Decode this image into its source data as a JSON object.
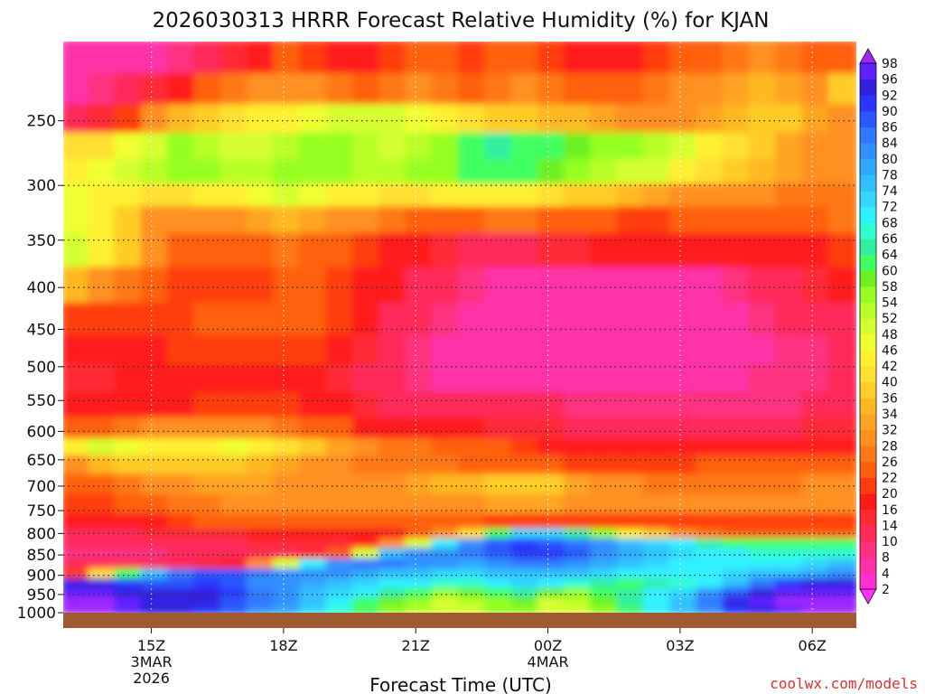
{
  "chart_data": {
    "type": "heatmap",
    "title": "2026030313 HRRR Forecast Relative Humidity (%) for KJAN",
    "xlabel": "Forecast Time (UTC)",
    "ylabel": "",
    "credit": "coolwx.com/models",
    "x_ticks": [
      {
        "hour": 15,
        "lines": [
          "15Z",
          "3MAR",
          "2026"
        ]
      },
      {
        "hour": 18,
        "lines": [
          "18Z"
        ]
      },
      {
        "hour": 21,
        "lines": [
          "21Z"
        ]
      },
      {
        "hour": 24,
        "lines": [
          "00Z",
          "4MAR"
        ]
      },
      {
        "hour": 27,
        "lines": [
          "03Z"
        ]
      },
      {
        "hour": 30,
        "lines": [
          "06Z"
        ]
      }
    ],
    "xlim": [
      13,
      31
    ],
    "y_ticks": [
      250,
      300,
      350,
      400,
      450,
      500,
      550,
      600,
      650,
      700,
      750,
      800,
      850,
      900,
      950,
      1000
    ],
    "ylim": [
      200,
      1000
    ],
    "y_scale": "log",
    "grid": true,
    "colorbar": {
      "levels": [
        2,
        4,
        8,
        10,
        14,
        16,
        20,
        22,
        26,
        28,
        32,
        34,
        36,
        40,
        42,
        46,
        48,
        52,
        54,
        58,
        60,
        64,
        66,
        68,
        72,
        74,
        78,
        80,
        84,
        86,
        90,
        92,
        96,
        98
      ],
      "colors": [
        "#ff30ff",
        "#ff30d2",
        "#ff30a8",
        "#ff3080",
        "#ff2a5a",
        "#ff2a36",
        "#ff1a1a",
        "#ff3c10",
        "#ff6010",
        "#ff7818",
        "#ff9020",
        "#ffa420",
        "#ffb820",
        "#ffcc28",
        "#ffe030",
        "#fff030",
        "#f0ff30",
        "#d6ff30",
        "#b8ff28",
        "#96ff20",
        "#6cf020",
        "#40ff60",
        "#30f0a0",
        "#30ffd0",
        "#30f0ff",
        "#30d8ff",
        "#30c0ff",
        "#30a8ff",
        "#3090ff",
        "#3078ff",
        "#2a58ff",
        "#2a38ff",
        "#3020e0",
        "#6020ff",
        "#a028ff"
      ]
    },
    "rows": [
      {
        "p": 210,
        "v": [
          4,
          4,
          4,
          6,
          8,
          12,
          14,
          18,
          22,
          20,
          18,
          16,
          20,
          24,
          22,
          20,
          22,
          24,
          20,
          18,
          16,
          18,
          20,
          22,
          24,
          26,
          28,
          26,
          24,
          22
        ]
      },
      {
        "p": 230,
        "v": [
          6,
          8,
          10,
          14,
          18,
          22,
          26,
          28,
          30,
          28,
          26,
          24,
          26,
          28,
          26,
          24,
          26,
          28,
          26,
          24,
          22,
          24,
          26,
          28,
          30,
          32,
          34,
          32,
          30,
          38
        ]
      },
      {
        "p": 250,
        "v": [
          10,
          14,
          20,
          28,
          34,
          38,
          40,
          42,
          44,
          46,
          48,
          48,
          50,
          46,
          44,
          40,
          38,
          36,
          34,
          34,
          32,
          30,
          30,
          30,
          32,
          34,
          36,
          38,
          32,
          30
        ]
      },
      {
        "p": 270,
        "v": [
          40,
          40,
          46,
          50,
          54,
          52,
          50,
          50,
          52,
          54,
          56,
          52,
          50,
          52,
          56,
          62,
          64,
          62,
          62,
          58,
          56,
          54,
          52,
          48,
          44,
          40,
          36,
          32,
          30,
          28
        ]
      },
      {
        "p": 290,
        "v": [
          44,
          46,
          50,
          52,
          54,
          54,
          52,
          52,
          54,
          54,
          54,
          52,
          52,
          54,
          56,
          60,
          62,
          60,
          58,
          54,
          52,
          50,
          48,
          44,
          40,
          36,
          34,
          32,
          30,
          28
        ]
      },
      {
        "p": 310,
        "v": [
          46,
          44,
          42,
          40,
          40,
          42,
          44,
          46,
          48,
          46,
          44,
          42,
          40,
          40,
          42,
          44,
          44,
          42,
          40,
          38,
          36,
          34,
          32,
          30,
          30,
          28,
          28,
          26,
          26,
          26
        ]
      },
      {
        "p": 330,
        "v": [
          46,
          42,
          36,
          30,
          28,
          28,
          30,
          32,
          34,
          32,
          30,
          28,
          26,
          24,
          24,
          24,
          26,
          26,
          24,
          22,
          22,
          20,
          20,
          22,
          22,
          22,
          22,
          24,
          24,
          26
        ]
      },
      {
        "p": 360,
        "v": [
          50,
          44,
          36,
          28,
          24,
          22,
          22,
          24,
          26,
          24,
          22,
          20,
          18,
          16,
          14,
          12,
          12,
          12,
          14,
          14,
          16,
          16,
          18,
          18,
          18,
          18,
          18,
          18,
          18,
          20
        ]
      },
      {
        "p": 400,
        "v": [
          34,
          30,
          26,
          22,
          20,
          20,
          20,
          20,
          22,
          22,
          20,
          18,
          16,
          12,
          10,
          8,
          6,
          6,
          6,
          6,
          6,
          6,
          6,
          6,
          6,
          8,
          10,
          12,
          14,
          16
        ]
      },
      {
        "p": 440,
        "v": [
          20,
          20,
          20,
          20,
          20,
          22,
          22,
          24,
          24,
          22,
          20,
          16,
          12,
          10,
          8,
          6,
          6,
          4,
          4,
          4,
          4,
          4,
          4,
          4,
          6,
          6,
          8,
          10,
          10,
          12
        ]
      },
      {
        "p": 480,
        "v": [
          16,
          16,
          18,
          18,
          20,
          20,
          20,
          20,
          20,
          20,
          18,
          14,
          10,
          8,
          6,
          6,
          4,
          4,
          4,
          4,
          4,
          4,
          4,
          4,
          4,
          6,
          6,
          8,
          8,
          10
        ]
      },
      {
        "p": 520,
        "v": [
          14,
          14,
          16,
          16,
          16,
          18,
          18,
          18,
          18,
          16,
          14,
          12,
          10,
          8,
          6,
          6,
          6,
          6,
          6,
          6,
          6,
          6,
          6,
          6,
          6,
          6,
          8,
          8,
          8,
          10
        ]
      },
      {
        "p": 560,
        "v": [
          16,
          16,
          18,
          18,
          18,
          20,
          20,
          20,
          20,
          18,
          16,
          14,
          12,
          10,
          10,
          10,
          10,
          10,
          10,
          8,
          8,
          8,
          8,
          8,
          8,
          8,
          8,
          8,
          10,
          10
        ]
      },
      {
        "p": 600,
        "v": [
          24,
          24,
          26,
          28,
          30,
          30,
          30,
          28,
          26,
          24,
          22,
          18,
          16,
          16,
          16,
          16,
          14,
          14,
          14,
          12,
          12,
          12,
          12,
          12,
          12,
          10,
          12,
          12,
          14,
          14
        ]
      },
      {
        "p": 630,
        "v": [
          44,
          48,
          46,
          44,
          42,
          44,
          46,
          44,
          40,
          36,
          32,
          28,
          26,
          26,
          24,
          24,
          22,
          20,
          18,
          16,
          16,
          16,
          16,
          16,
          16,
          16,
          16,
          16,
          18,
          18
        ]
      },
      {
        "p": 660,
        "v": [
          30,
          34,
          36,
          36,
          36,
          38,
          36,
          34,
          32,
          30,
          28,
          26,
          26,
          26,
          26,
          24,
          24,
          22,
          22,
          20,
          20,
          20,
          20,
          20,
          22,
          22,
          22,
          22,
          22,
          22
        ]
      },
      {
        "p": 700,
        "v": [
          24,
          24,
          26,
          28,
          30,
          32,
          32,
          32,
          30,
          28,
          28,
          28,
          30,
          32,
          34,
          34,
          36,
          36,
          36,
          32,
          30,
          28,
          26,
          26,
          26,
          26,
          26,
          26,
          28,
          28
        ]
      },
      {
        "p": 740,
        "v": [
          20,
          20,
          22,
          24,
          26,
          26,
          28,
          28,
          28,
          28,
          28,
          28,
          28,
          30,
          30,
          30,
          32,
          32,
          32,
          30,
          30,
          28,
          28,
          28,
          28,
          28,
          28,
          28,
          30,
          30
        ]
      },
      {
        "p": 780,
        "v": [
          16,
          16,
          16,
          18,
          20,
          22,
          22,
          22,
          22,
          22,
          22,
          22,
          22,
          22,
          22,
          22,
          20,
          20,
          20,
          20,
          20,
          20,
          20,
          20,
          20,
          20,
          20,
          20,
          20,
          20
        ]
      },
      {
        "p": 805,
        "v": [
          12,
          12,
          12,
          14,
          14,
          14,
          14,
          16,
          16,
          16,
          16,
          16,
          18,
          22,
          30,
          40,
          60,
          72,
          72,
          64,
          54,
          44,
          36,
          30,
          26,
          24,
          22,
          22,
          22,
          22
        ]
      },
      {
        "p": 825,
        "v": [
          10,
          10,
          10,
          10,
          12,
          12,
          12,
          14,
          14,
          14,
          14,
          18,
          30,
          50,
          70,
          82,
          88,
          90,
          88,
          84,
          80,
          76,
          72,
          68,
          64,
          62,
          60,
          60,
          60,
          60
        ]
      },
      {
        "p": 850,
        "v": [
          8,
          8,
          8,
          8,
          10,
          10,
          10,
          10,
          12,
          14,
          22,
          50,
          74,
          80,
          82,
          84,
          86,
          90,
          90,
          86,
          82,
          78,
          74,
          72,
          70,
          68,
          66,
          66,
          66,
          66
        ]
      },
      {
        "p": 875,
        "v": [
          10,
          10,
          10,
          10,
          12,
          14,
          18,
          30,
          50,
          70,
          80,
          84,
          84,
          82,
          80,
          78,
          80,
          84,
          84,
          82,
          78,
          74,
          72,
          70,
          68,
          68,
          68,
          70,
          72,
          74
        ]
      },
      {
        "p": 900,
        "v": [
          20,
          40,
          60,
          76,
          84,
          86,
          86,
          84,
          82,
          82,
          80,
          78,
          76,
          74,
          72,
          72,
          74,
          76,
          76,
          74,
          72,
          70,
          68,
          68,
          70,
          72,
          74,
          76,
          78,
          80
        ]
      },
      {
        "p": 925,
        "v": [
          92,
          92,
          90,
          88,
          88,
          90,
          86,
          82,
          80,
          78,
          74,
          72,
          70,
          68,
          66,
          66,
          68,
          72,
          70,
          66,
          64,
          62,
          64,
          66,
          70,
          76,
          84,
          90,
          92,
          92
        ]
      },
      {
        "p": 950,
        "v": [
          96,
          96,
          94,
          92,
          92,
          94,
          90,
          84,
          80,
          76,
          72,
          68,
          64,
          60,
          56,
          58,
          62,
          64,
          58,
          56,
          60,
          64,
          68,
          72,
          80,
          88,
          94,
          96,
          96,
          96
        ]
      },
      {
        "p": 975,
        "v": [
          98,
          98,
          96,
          94,
          94,
          92,
          88,
          84,
          80,
          74,
          68,
          62,
          58,
          54,
          50,
          52,
          56,
          58,
          50,
          52,
          58,
          64,
          70,
          76,
          84,
          92,
          96,
          98,
          98,
          98
        ]
      },
      {
        "p": 1000,
        "v": [
          98,
          98,
          96,
          94,
          92,
          90,
          86,
          82,
          78,
          72,
          66,
          60,
          56,
          52,
          48,
          50,
          54,
          56,
          48,
          50,
          56,
          62,
          68,
          74,
          82,
          90,
          94,
          96,
          98,
          98
        ]
      }
    ]
  }
}
